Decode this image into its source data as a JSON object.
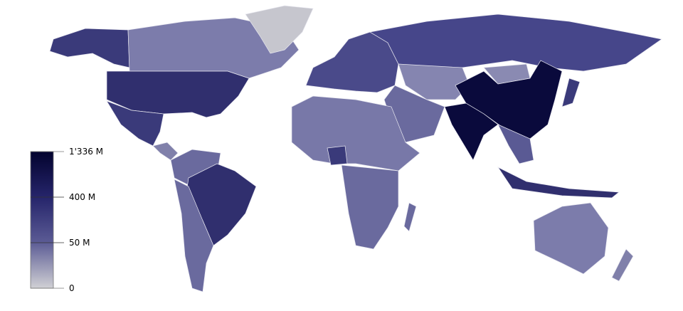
{
  "legend": {
    "ticks": [
      {
        "label": "1'336 M",
        "value": 1336000000
      },
      {
        "label": "400 M",
        "value": 400000000
      },
      {
        "label": "50 M",
        "value": 50000000
      },
      {
        "label": "0",
        "value": 0
      }
    ],
    "colors": {
      "max": "#03032e",
      "mid_high": "#25246a",
      "mid_low": "#5a5a94",
      "min": "#cfcfd4"
    }
  },
  "map": {
    "variable": "population by country",
    "colors": {
      "china_india": "#0a0a3c",
      "usa_brazil_indonesia": "#302f6e",
      "russia_nigeria": "#46468a",
      "mid": "#6a6a9e",
      "low": "#8c8cb4",
      "greenland": "#c6c6ce"
    }
  }
}
